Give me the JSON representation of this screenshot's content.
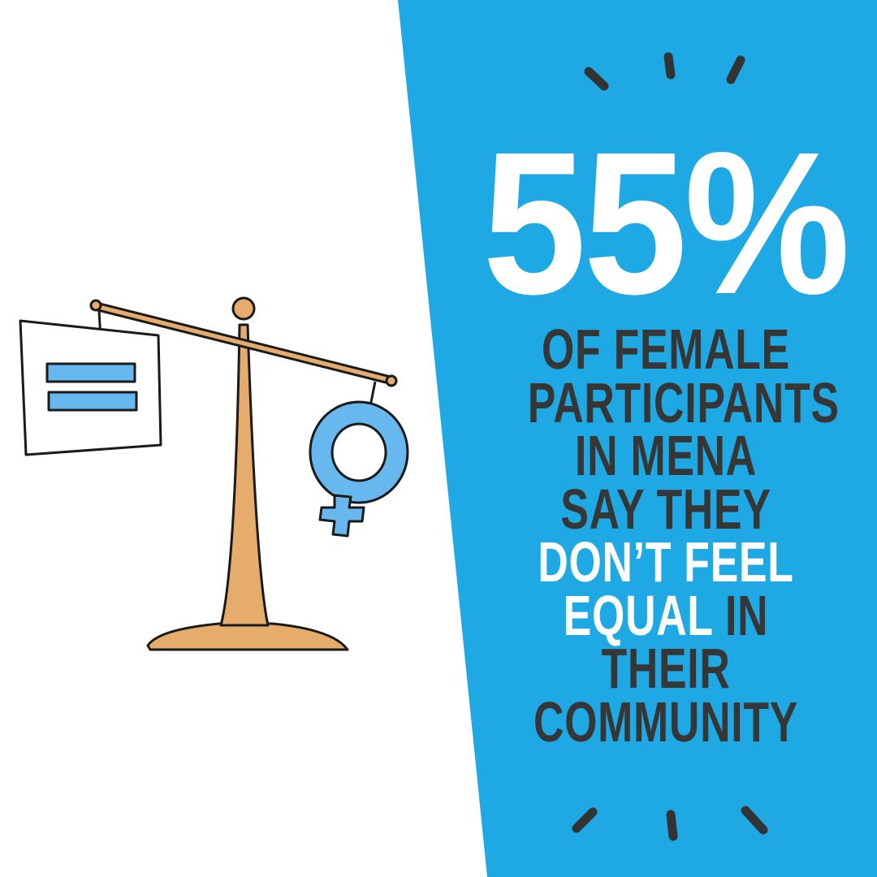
{
  "stat": {
    "value": "55%"
  },
  "caption": {
    "lines": [
      {
        "dark": "OF FEMALE",
        "light": ""
      },
      {
        "dark": "PARTICIPANTS",
        "light": ""
      },
      {
        "dark": "IN MENA",
        "light": ""
      },
      {
        "dark": "SAY THEY",
        "light": ""
      },
      {
        "dark": "",
        "light": "DON’T FEEL"
      },
      {
        "dark": " IN",
        "light": "EQUAL"
      },
      {
        "dark": "THEIR",
        "light": ""
      },
      {
        "dark": "COMMUNITY",
        "light": ""
      }
    ]
  },
  "colors": {
    "panel_blue": "#1fa9e4",
    "text_dark": "#363636",
    "text_light": "#ffffff",
    "scale_tan": "#e5ac6c",
    "symbol_blue": "#66b8ee"
  },
  "illustration": {
    "icons": [
      "balance-scale-icon",
      "equals-sign-icon",
      "female-symbol-icon"
    ]
  }
}
